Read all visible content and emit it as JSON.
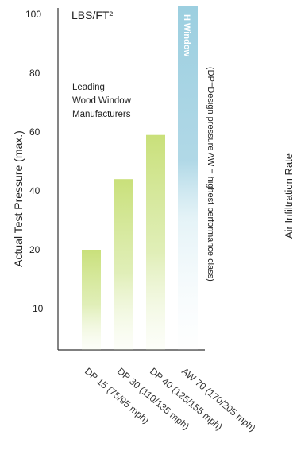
{
  "chart_data": {
    "type": "bar",
    "unit_label": "LBS/FT²",
    "ylabel": "Actual Test Pressure (max.)",
    "yticks": [
      10,
      20,
      40,
      60,
      80,
      100
    ],
    "ylim": [
      0,
      100
    ],
    "categories": [
      "DP 15 (75/95 mph)",
      "DP 30 (110/135 mph)",
      "DP 40 (125/155 mph)",
      "AW 70 (170/205 mph)"
    ],
    "values": [
      20,
      44,
      59,
      100
    ],
    "bar_labels": [
      "",
      "",
      "",
      "H Window"
    ],
    "annotation": [
      "Leading",
      "Wood Window",
      "Manufacturers"
    ],
    "note": "(DP=Design pressure  AW = highest performance class)",
    "right_label": "Air Infiltration Rate",
    "colors": {
      "green": "#cfe38a",
      "blue": "#9ccfe0",
      "axis": "#333333"
    }
  }
}
